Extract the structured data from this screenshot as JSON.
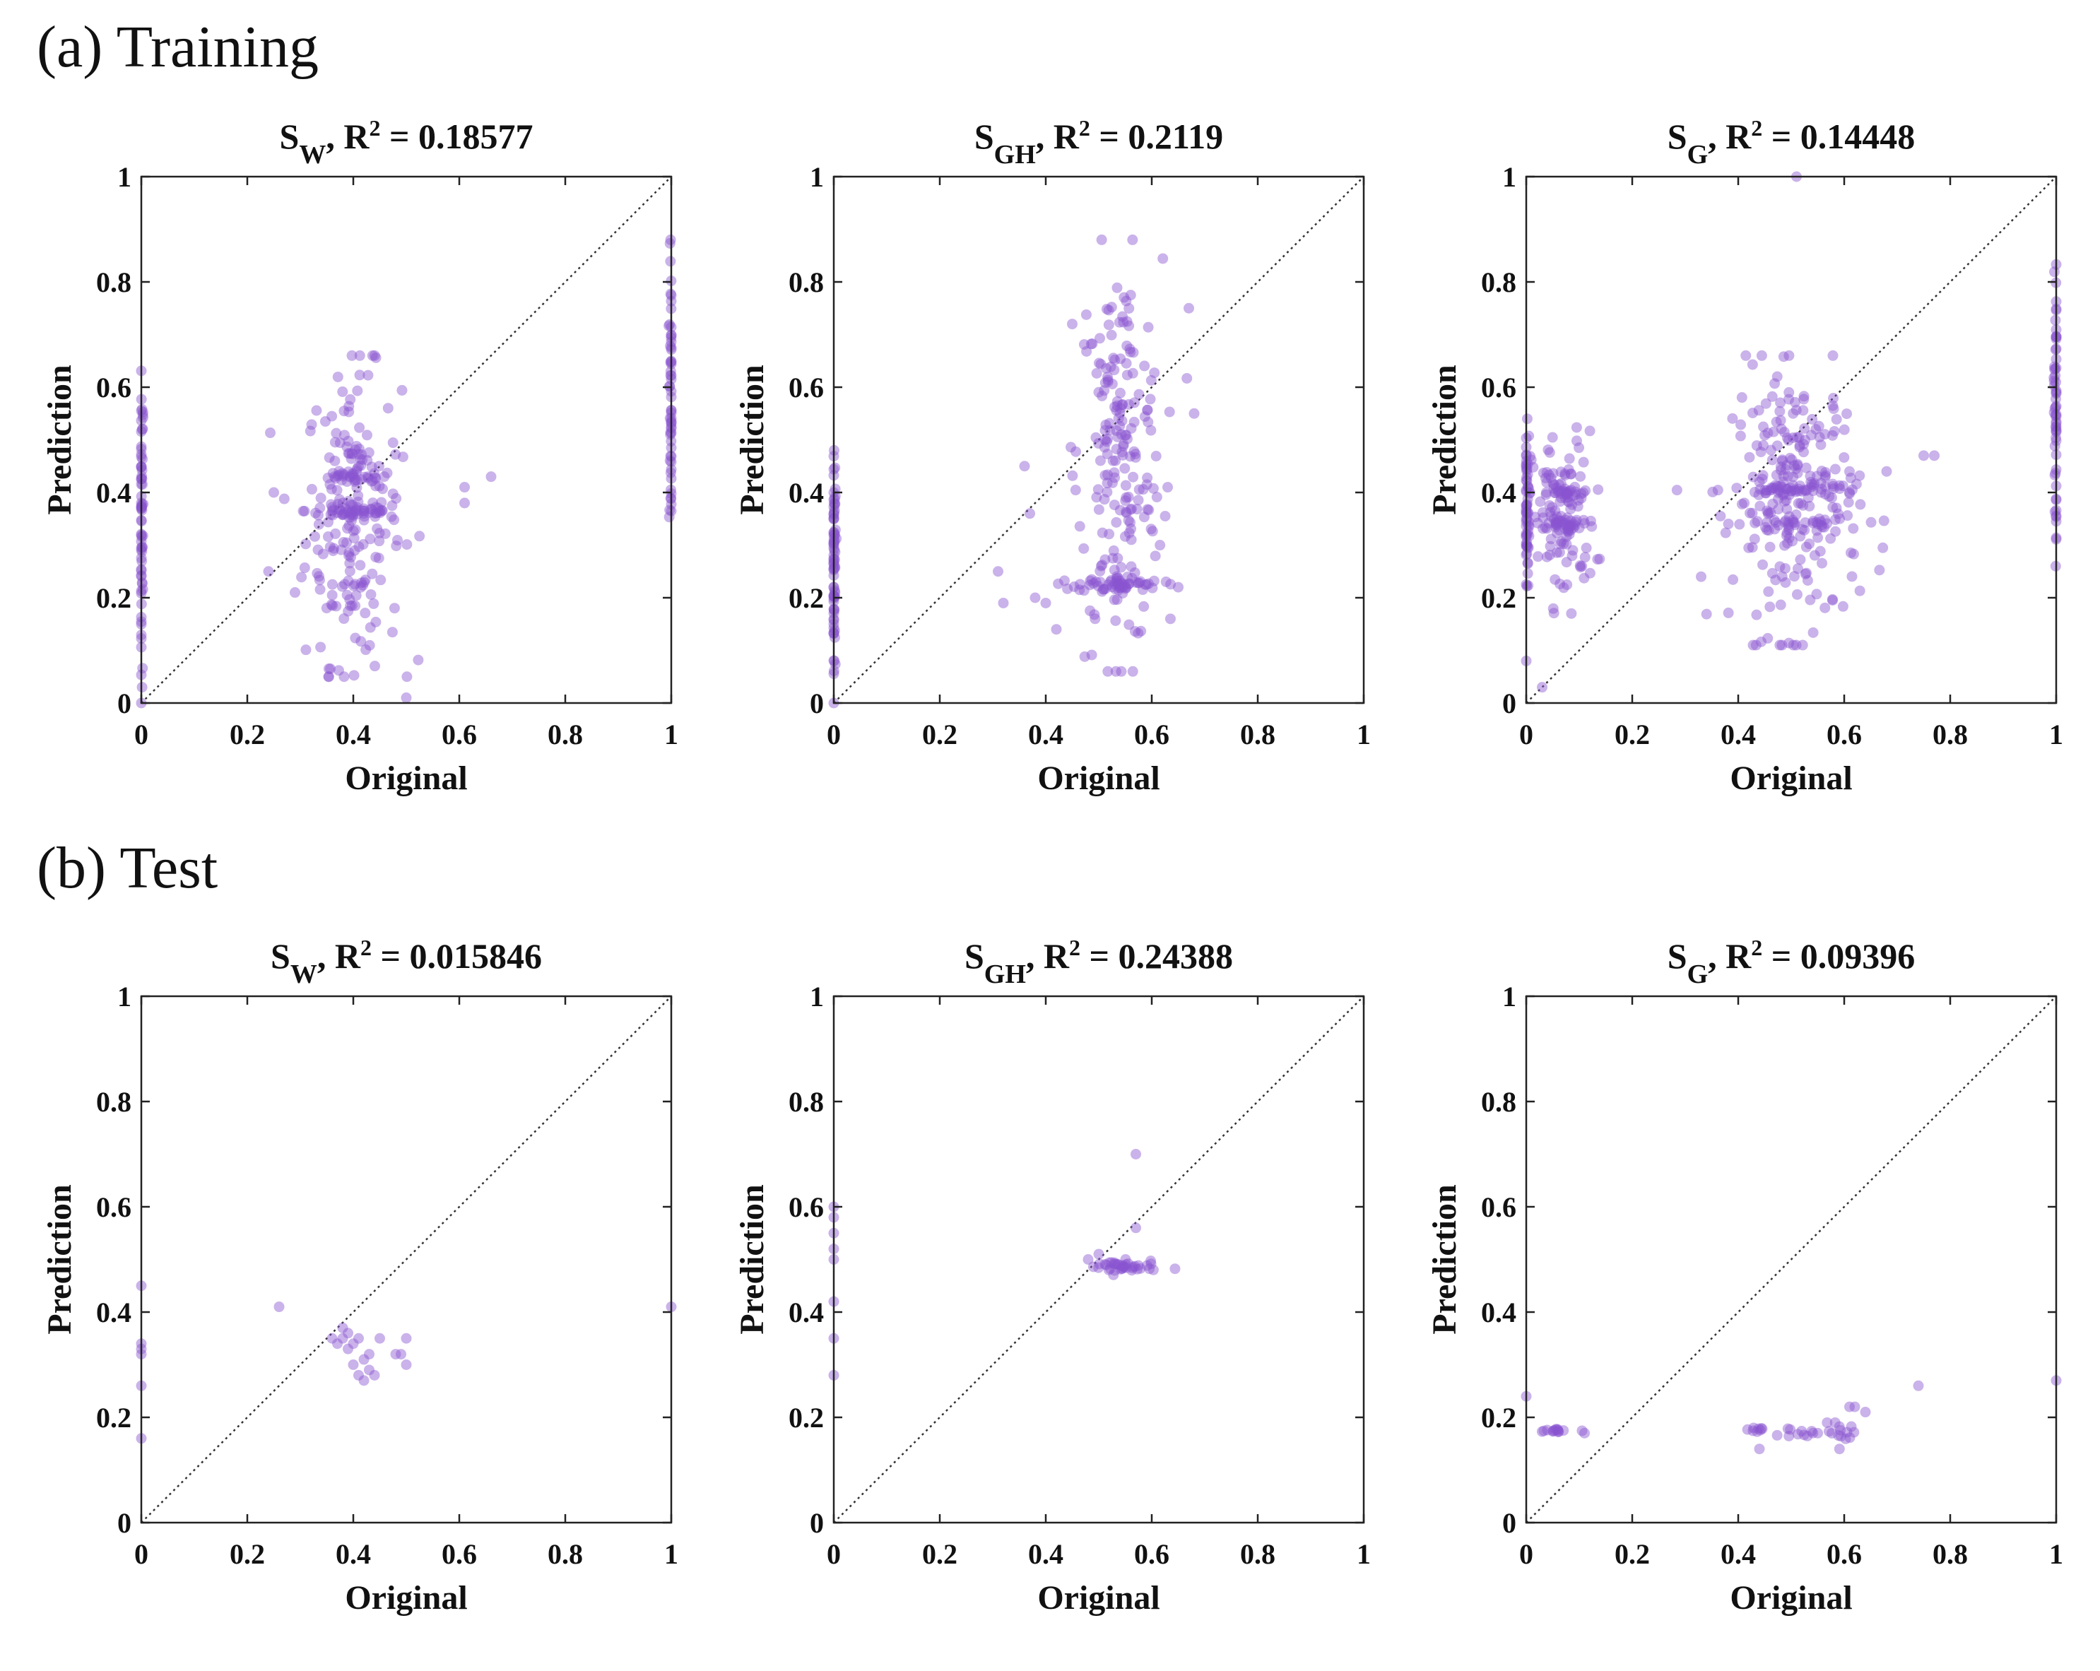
{
  "panels": {
    "a_label": "(a) Training",
    "b_label": "(b) Test"
  },
  "chart_data": [
    {
      "type": "scatter",
      "group": "Training",
      "title": {
        "var": "S",
        "sub": "W",
        "mid": ", R",
        "sup": "2",
        "tail": " = 0.18577"
      },
      "xlabel": "Original",
      "ylabel": "Prediction",
      "xlim": [
        0,
        1
      ],
      "ylim": [
        0,
        1
      ],
      "xticks": [
        "0",
        "0.2",
        "0.4",
        "0.6",
        "0.8",
        "1"
      ],
      "yticks": [
        "0",
        "0.2",
        "0.4",
        "0.6",
        "0.8",
        "1"
      ],
      "color": "#8a55d0",
      "clusters": [
        {
          "x": 0,
          "xs": 0.002,
          "ymin": 0.0,
          "ymax": 0.66,
          "n": 70
        },
        {
          "x": 1,
          "xs": 0.002,
          "ymin": 0.25,
          "ymax": 0.88,
          "n": 60
        },
        {
          "x": 0.4,
          "xs": 0.045,
          "ymin": 0.05,
          "ymax": 0.66,
          "n": 200
        },
        {
          "x": 0.4,
          "xs": 0.045,
          "ymin": 0.35,
          "ymax": 0.38,
          "n": 40
        },
        {
          "x": 0.4,
          "xs": 0.04,
          "ymin": 0.42,
          "ymax": 0.44,
          "n": 20
        }
      ],
      "points": [
        [
          0.24,
          0.25
        ],
        [
          0.25,
          0.4
        ],
        [
          0.29,
          0.21
        ],
        [
          0.61,
          0.38
        ],
        [
          0.61,
          0.41
        ],
        [
          0.66,
          0.43
        ],
        [
          0.5,
          0.01
        ]
      ]
    },
    {
      "type": "scatter",
      "group": "Training",
      "title": {
        "var": "S",
        "sub": "GH",
        "mid": ", R",
        "sup": "2",
        "tail": " = 0.2119"
      },
      "xlabel": "Original",
      "ylabel": "Prediction",
      "xlim": [
        0,
        1
      ],
      "ylim": [
        0,
        1
      ],
      "xticks": [
        "0",
        "0.2",
        "0.4",
        "0.6",
        "0.8",
        "1"
      ],
      "yticks": [
        "0",
        "0.2",
        "0.4",
        "0.6",
        "0.8",
        "1"
      ],
      "color": "#8a55d0",
      "clusters": [
        {
          "x": 0,
          "xs": 0.002,
          "ymin": 0.0,
          "ymax": 0.48,
          "n": 80
        },
        {
          "x": 0.54,
          "xs": 0.04,
          "ymin": 0.06,
          "ymax": 0.88,
          "n": 200
        },
        {
          "x": 0.54,
          "xs": 0.04,
          "ymin": 0.21,
          "ymax": 0.24,
          "n": 50
        }
      ],
      "points": [
        [
          0.31,
          0.25
        ],
        [
          0.32,
          0.19
        ],
        [
          0.36,
          0.45
        ],
        [
          0.37,
          0.36
        ],
        [
          0.38,
          0.2
        ],
        [
          0.4,
          0.19
        ],
        [
          0.42,
          0.14
        ],
        [
          0.45,
          0.72
        ],
        [
          0.67,
          0.75
        ],
        [
          0.68,
          0.55
        ],
        [
          0.63,
          0.41
        ],
        [
          0.65,
          0.22
        ]
      ]
    },
    {
      "type": "scatter",
      "group": "Training",
      "title": {
        "var": "S",
        "sub": "G",
        "mid": ", R",
        "sup": "2",
        "tail": " = 0.14448"
      },
      "xlabel": "Original",
      "ylabel": "Prediction",
      "xlim": [
        0,
        1
      ],
      "ylim": [
        0,
        1
      ],
      "xticks": [
        "0",
        "0.2",
        "0.4",
        "0.6",
        "0.8",
        "1"
      ],
      "yticks": [
        "0",
        "0.2",
        "0.4",
        "0.6",
        "0.8",
        "1"
      ],
      "color": "#8a55d0",
      "clusters": [
        {
          "x": 0,
          "xs": 0.003,
          "ymin": 0.2,
          "ymax": 0.54,
          "n": 60
        },
        {
          "x": 1,
          "xs": 0.002,
          "ymin": 0.26,
          "ymax": 0.86,
          "n": 60
        },
        {
          "x": 0.07,
          "xs": 0.03,
          "ymin": 0.17,
          "ymax": 0.53,
          "n": 110
        },
        {
          "x": 0.07,
          "xs": 0.025,
          "ymin": 0.33,
          "ymax": 0.35,
          "n": 25
        },
        {
          "x": 0.07,
          "xs": 0.025,
          "ymin": 0.39,
          "ymax": 0.41,
          "n": 25
        },
        {
          "x": 0.51,
          "xs": 0.06,
          "ymin": 0.11,
          "ymax": 0.66,
          "n": 230
        },
        {
          "x": 0.51,
          "xs": 0.06,
          "ymin": 0.39,
          "ymax": 0.42,
          "n": 50
        },
        {
          "x": 0.51,
          "xs": 0.05,
          "ymin": 0.33,
          "ymax": 0.35,
          "n": 20
        }
      ],
      "points": [
        [
          0.0,
          0.08
        ],
        [
          0.03,
          0.03
        ],
        [
          0.33,
          0.24
        ],
        [
          0.68,
          0.44
        ],
        [
          0.75,
          0.47
        ],
        [
          0.77,
          0.47
        ],
        [
          0.51,
          1.0
        ]
      ]
    },
    {
      "type": "scatter",
      "group": "Test",
      "title": {
        "var": "S",
        "sub": "W",
        "mid": ", R",
        "sup": "2",
        "tail": " = 0.015846"
      },
      "xlabel": "Original",
      "ylabel": "Prediction",
      "xlim": [
        0,
        1
      ],
      "ylim": [
        0,
        1
      ],
      "xticks": [
        "0",
        "0.2",
        "0.4",
        "0.6",
        "0.8",
        "1"
      ],
      "yticks": [
        "0",
        "0.2",
        "0.4",
        "0.6",
        "0.8",
        "1"
      ],
      "color": "#8a55d0",
      "clusters": [],
      "points": [
        [
          0,
          0.45
        ],
        [
          0,
          0.34
        ],
        [
          0,
          0.33
        ],
        [
          0,
          0.32
        ],
        [
          0,
          0.26
        ],
        [
          0,
          0.16
        ],
        [
          1,
          0.41
        ],
        [
          0.26,
          0.41
        ],
        [
          0.36,
          0.35
        ],
        [
          0.37,
          0.34
        ],
        [
          0.38,
          0.35
        ],
        [
          0.39,
          0.36
        ],
        [
          0.4,
          0.34
        ],
        [
          0.38,
          0.37
        ],
        [
          0.41,
          0.35
        ],
        [
          0.4,
          0.3
        ],
        [
          0.41,
          0.28
        ],
        [
          0.42,
          0.27
        ],
        [
          0.43,
          0.29
        ],
        [
          0.44,
          0.28
        ],
        [
          0.43,
          0.32
        ],
        [
          0.45,
          0.35
        ],
        [
          0.48,
          0.32
        ],
        [
          0.49,
          0.32
        ],
        [
          0.5,
          0.3
        ],
        [
          0.5,
          0.35
        ],
        [
          0.42,
          0.31
        ],
        [
          0.39,
          0.33
        ]
      ]
    },
    {
      "type": "scatter",
      "group": "Test",
      "title": {
        "var": "S",
        "sub": "GH",
        "mid": ", R",
        "sup": "2",
        "tail": " = 0.24388"
      },
      "xlabel": "Original",
      "ylabel": "Prediction",
      "xlim": [
        0,
        1
      ],
      "ylim": [
        0,
        1
      ],
      "xticks": [
        "0",
        "0.2",
        "0.4",
        "0.6",
        "0.8",
        "1"
      ],
      "yticks": [
        "0",
        "0.2",
        "0.4",
        "0.6",
        "0.8",
        "1"
      ],
      "color": "#8a55d0",
      "clusters": [
        {
          "x": 0.54,
          "xs": 0.035,
          "ymin": 0.47,
          "ymax": 0.5,
          "n": 40
        }
      ],
      "points": [
        [
          0,
          0.6
        ],
        [
          0,
          0.58
        ],
        [
          0,
          0.55
        ],
        [
          0,
          0.52
        ],
        [
          0,
          0.5
        ],
        [
          0,
          0.42
        ],
        [
          0,
          0.35
        ],
        [
          0,
          0.28
        ],
        [
          0.57,
          0.56
        ],
        [
          0.57,
          0.7
        ],
        [
          0.5,
          0.51
        ],
        [
          0.48,
          0.5
        ]
      ]
    },
    {
      "type": "scatter",
      "group": "Test",
      "title": {
        "var": "S",
        "sub": "G",
        "mid": ", R",
        "sup": "2",
        "tail": " = 0.09396"
      },
      "xlabel": "Original",
      "ylabel": "Prediction",
      "xlim": [
        0,
        1
      ],
      "ylim": [
        0,
        1
      ],
      "xticks": [
        "0",
        "0.2",
        "0.4",
        "0.6",
        "0.8",
        "1"
      ],
      "yticks": [
        "0",
        "0.2",
        "0.4",
        "0.6",
        "0.8",
        "1"
      ],
      "color": "#8a55d0",
      "clusters": [
        {
          "x": 0.06,
          "xs": 0.02,
          "ymin": 0.17,
          "ymax": 0.18,
          "n": 14
        },
        {
          "x": 0.44,
          "xs": 0.01,
          "ymin": 0.17,
          "ymax": 0.185,
          "n": 8
        },
        {
          "x": 0.51,
          "xs": 0.015,
          "ymin": 0.16,
          "ymax": 0.18,
          "n": 10
        },
        {
          "x": 0.59,
          "xs": 0.015,
          "ymin": 0.14,
          "ymax": 0.19,
          "n": 14
        }
      ],
      "points": [
        [
          0,
          0.24
        ],
        [
          0.44,
          0.14
        ],
        [
          0.55,
          0.17
        ],
        [
          0.61,
          0.22
        ],
        [
          0.62,
          0.22
        ],
        [
          0.64,
          0.21
        ],
        [
          0.74,
          0.26
        ],
        [
          1,
          0.27
        ],
        [
          0.11,
          0.17
        ]
      ]
    }
  ]
}
